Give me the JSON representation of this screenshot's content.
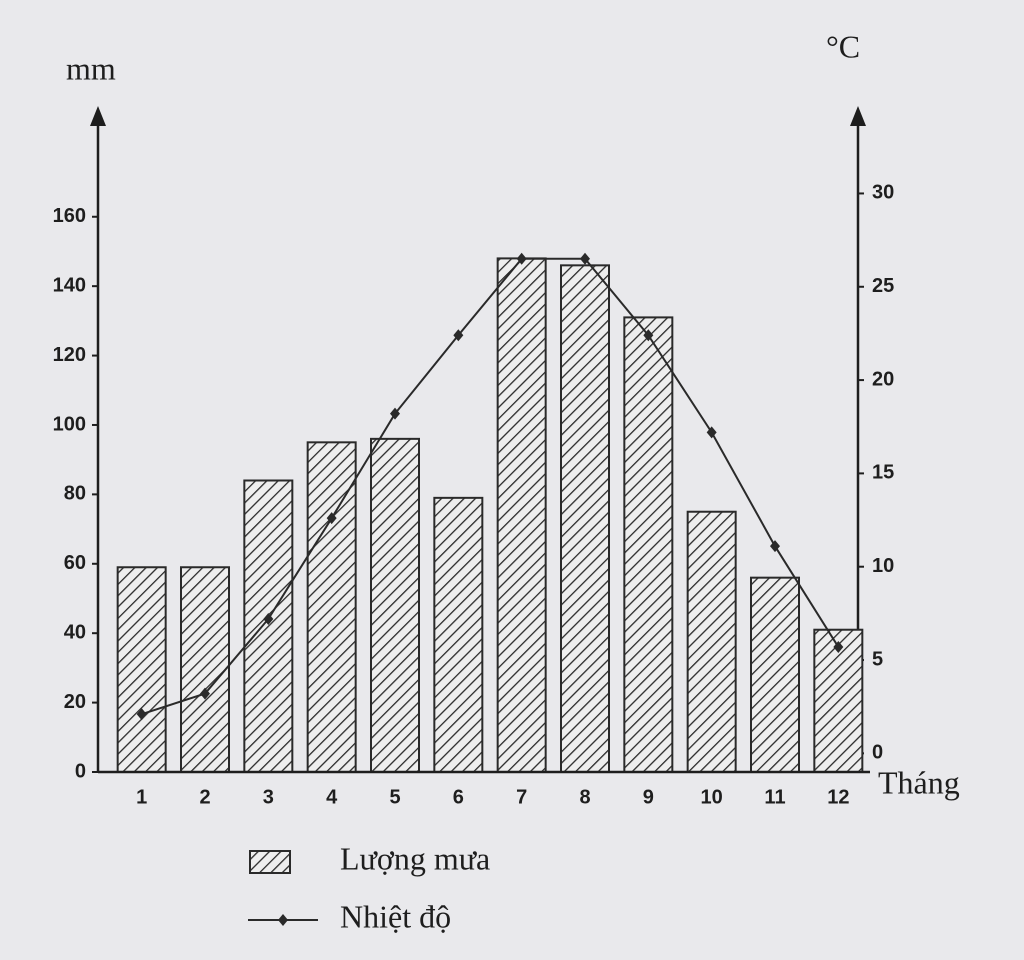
{
  "chart_data": {
    "type": "bar-line",
    "y_label": "mm",
    "y2_label": "°C",
    "x_label": "Tháng",
    "categories": [
      "1",
      "2",
      "3",
      "4",
      "5",
      "6",
      "7",
      "8",
      "9",
      "10",
      "11",
      "12"
    ],
    "series": [
      {
        "name": "Lượng mưa",
        "type": "bar",
        "color": "#2a2a2a",
        "values": [
          59,
          59,
          84,
          95,
          96,
          79,
          148,
          146,
          131,
          75,
          56,
          41
        ]
      },
      {
        "name": "Nhiệt độ",
        "type": "line",
        "axis": "y2",
        "color": "#2a2a2a",
        "values": [
          2.1,
          3.2,
          7.2,
          12.6,
          18.2,
          22.4,
          26.5,
          26.5,
          22.4,
          17.2,
          11.1,
          5.7
        ]
      }
    ],
    "ylim": [
      0,
      185
    ],
    "yticks": [
      0,
      20,
      40,
      60,
      80,
      100,
      120,
      140,
      160
    ],
    "y2lim": [
      -1,
      33.4
    ],
    "y2ticks": [
      0,
      5,
      10,
      15,
      20,
      25,
      30
    ],
    "legend": "bottom"
  }
}
